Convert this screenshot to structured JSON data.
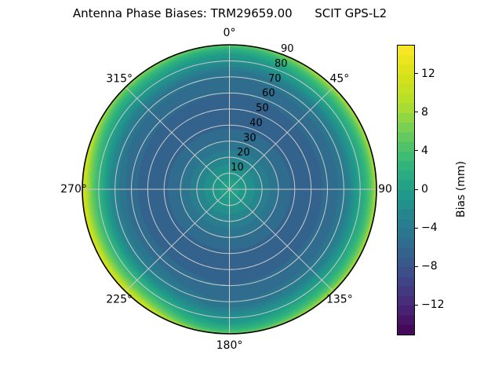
{
  "chart_data": {
    "type": "heatmap",
    "projection": "polar",
    "title": "Antenna Phase Biases: TRM29659.00      SCIT GPS-L2",
    "angular_tick_labels": [
      "0°",
      "45°",
      "90",
      "135°",
      "180°",
      "225°",
      "270°",
      "315°"
    ],
    "angular_tick_degrees": [
      0,
      45,
      90,
      135,
      180,
      225,
      270,
      315
    ],
    "radial_ticks": [
      10,
      20,
      30,
      40,
      50,
      60,
      70,
      80,
      90
    ],
    "radial_axis_max": 90,
    "radial_label_azimuth_deg": 22.5,
    "grid": true,
    "colors": {
      "grid": "#c9c9c9",
      "outline": "#000000",
      "background": "#ffffff"
    },
    "colorbar": {
      "label": "Bias (mm)",
      "vmin": -15,
      "vmax": 15,
      "level_step_mm": 1,
      "colormap": "viridis",
      "ticks": [
        {
          "value": 12,
          "label": "12"
        },
        {
          "value": 8,
          "label": "8"
        },
        {
          "value": 4,
          "label": "4"
        },
        {
          "value": 0,
          "label": "0"
        },
        {
          "value": -4,
          "label": "−4"
        },
        {
          "value": -8,
          "label": "−8"
        },
        {
          "value": -12,
          "label": "−12"
        }
      ]
    },
    "colormap_anchors": [
      [
        0.0,
        68,
        1,
        84
      ],
      [
        0.1,
        72,
        40,
        120
      ],
      [
        0.2,
        62,
        74,
        137
      ],
      [
        0.3,
        49,
        104,
        142
      ],
      [
        0.4,
        38,
        130,
        142
      ],
      [
        0.5,
        31,
        158,
        137
      ],
      [
        0.6,
        53,
        183,
        121
      ],
      [
        0.7,
        109,
        205,
        89
      ],
      [
        0.8,
        180,
        222,
        44
      ],
      [
        0.9,
        216,
        226,
        25
      ],
      [
        1.0,
        253,
        231,
        37
      ]
    ],
    "bias_vs_zenith": {
      "r_norm": [
        0,
        0.06,
        0.12,
        0.2,
        0.3,
        0.4,
        0.5,
        0.6,
        0.68,
        0.73,
        0.78,
        0.81,
        0.84,
        0.87,
        0.9,
        0.93,
        0.96,
        0.98,
        1.0
      ],
      "bias_mm": [
        0.4,
        0.1,
        -0.9,
        -2.6,
        -4.6,
        -5.9,
        -6.5,
        -6.3,
        -5.6,
        -5.3,
        -3.9,
        -3.3,
        -1.8,
        -0.2,
        1.0,
        2.5,
        4.6,
        6.5,
        9.2
      ]
    },
    "horizon_bias_by_azimuth": {
      "azimuth_deg": [
        0,
        45,
        90,
        135,
        180,
        225,
        270,
        315
      ],
      "bias_mm": [
        5.2,
        9.3,
        9.2,
        9.0,
        5.5,
        12.8,
        13.0,
        7.5
      ]
    },
    "horizon_blend": {
      "start_r": 0.55,
      "exponent": 2
    }
  }
}
